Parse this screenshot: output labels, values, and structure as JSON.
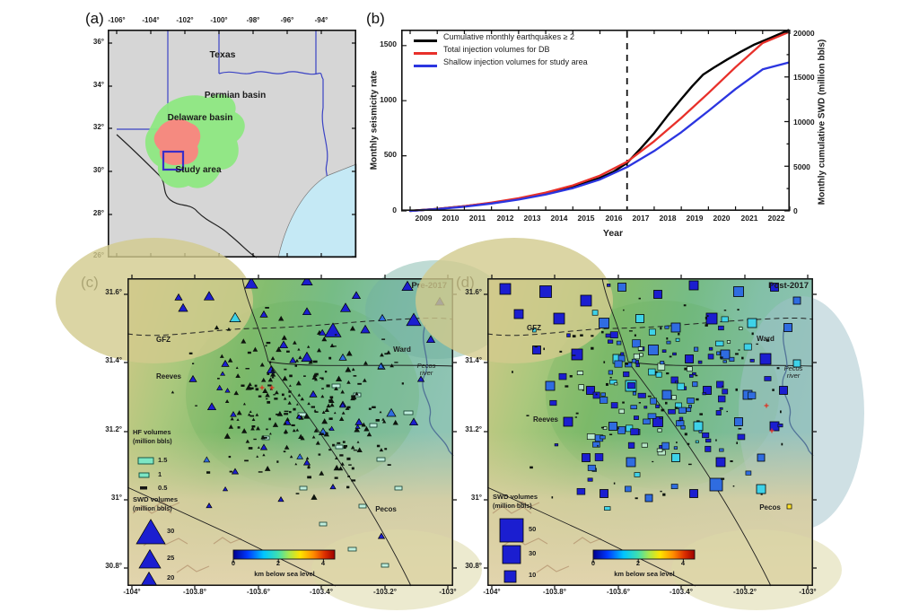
{
  "panels": {
    "a_label": "(a)",
    "b_label": "(b)",
    "c_label": "(c)",
    "d_label": "(d)"
  },
  "panel_a": {
    "x_ticks": [
      "-106°",
      "-104°",
      "-102°",
      "-100°",
      "-98°",
      "-96°",
      "-94°"
    ],
    "y_ticks": [
      "36°",
      "34°",
      "32°",
      "30°",
      "28°",
      "26°"
    ],
    "map_labels": {
      "state": "Texas",
      "permian": "Permian basin",
      "delaware": "Delaware basin",
      "study_area": "Study area"
    },
    "colors": {
      "land": "#d6d6d6",
      "gulf": "#c5e9f5",
      "state_border": "#3b43c4",
      "country_border": "#222222",
      "permian_fill": "#8ee882",
      "delaware_fill": "#f58a80",
      "study_box": "#3a2ec8"
    }
  },
  "panel_b": {
    "legend": [
      {
        "label": "Cumulative monthly earthquakes ≥ 2",
        "color": "#000000"
      },
      {
        "label": "Total injection volumes for DB",
        "color": "#e8302a"
      },
      {
        "label": "Shallow injection volumes for study area",
        "color": "#2b35e0"
      }
    ],
    "y_left_title": "Monthly seismicity rate",
    "y_left_ticks": [
      "0",
      "500",
      "1000",
      "1500"
    ],
    "y_right_title": "Monthly cumulative SWD (million bbls)",
    "y_right_ticks": [
      "0",
      "5000",
      "10000",
      "15000",
      "20000"
    ],
    "x_title": "Year",
    "x_ticks": [
      "2009",
      "2010",
      "2011",
      "2012",
      "2013",
      "2014",
      "2015",
      "2016",
      "2017",
      "2018",
      "2019",
      "2020",
      "2021",
      "2022"
    ],
    "chart_data": {
      "type": "line",
      "x_range": [
        2009,
        2023
      ],
      "y_left_range": [
        0,
        1645
      ],
      "y_right_range": [
        0,
        20300
      ],
      "dashed_vline_x": 2017,
      "series": [
        {
          "name": "Cumulative monthly earthquakes ≥ 2",
          "axis": "left",
          "color": "#000000",
          "points": [
            [
              2009,
              0
            ],
            [
              2010,
              18
            ],
            [
              2011,
              42
            ],
            [
              2012,
              72
            ],
            [
              2013,
              108
            ],
            [
              2014,
              152
            ],
            [
              2015,
              215
            ],
            [
              2016,
              300
            ],
            [
              2016.5,
              355
            ],
            [
              2017,
              435
            ],
            [
              2017.5,
              565
            ],
            [
              2018,
              705
            ],
            [
              2018.5,
              865
            ],
            [
              2019,
              1015
            ],
            [
              2019.4,
              1130
            ],
            [
              2019.8,
              1235
            ],
            [
              2020.2,
              1300
            ],
            [
              2020.7,
              1375
            ],
            [
              2021.2,
              1445
            ],
            [
              2021.7,
              1510
            ],
            [
              2022.2,
              1560
            ],
            [
              2022.95,
              1640
            ]
          ]
        },
        {
          "name": "Total injection volumes for DB",
          "axis": "right",
          "color": "#e8302a",
          "points": [
            [
              2009,
              0
            ],
            [
              2010,
              220
            ],
            [
              2011,
              520
            ],
            [
              2012,
              920
            ],
            [
              2013,
              1420
            ],
            [
              2014,
              2050
            ],
            [
              2015,
              2850
            ],
            [
              2016,
              3950
            ],
            [
              2017,
              5500
            ],
            [
              2018,
              7800
            ],
            [
              2019,
              10400
            ],
            [
              2020,
              13200
            ],
            [
              2021,
              16100
            ],
            [
              2022,
              18800
            ],
            [
              2022.95,
              20000
            ]
          ]
        },
        {
          "name": "Shallow injection volumes for study area",
          "axis": "right",
          "color": "#2b35e0",
          "points": [
            [
              2009,
              0
            ],
            [
              2010,
              200
            ],
            [
              2011,
              460
            ],
            [
              2012,
              820
            ],
            [
              2013,
              1270
            ],
            [
              2014,
              1830
            ],
            [
              2015,
              2540
            ],
            [
              2016,
              3520
            ],
            [
              2017,
              4900
            ],
            [
              2018,
              6700
            ],
            [
              2019,
              8800
            ],
            [
              2020,
              11200
            ],
            [
              2021,
              13650
            ],
            [
              2022,
              15850
            ],
            [
              2022.95,
              16600
            ]
          ]
        }
      ]
    }
  },
  "panel_c": {
    "title": "Pre-2017",
    "x_ticks": [
      "-104°",
      "-103.8°",
      "-103.6°",
      "-103.4°",
      "-103.2°",
      "-103°"
    ],
    "y_ticks": [
      "31.6°",
      "31.4°",
      "31.2°",
      "31°",
      "30.8°"
    ],
    "map_labels": {
      "gfz": "GFZ",
      "reeves": "Reeves",
      "ward": "Ward",
      "pecos_river": "Pecos river",
      "pecos": "Pecos"
    },
    "hf_legend": {
      "title": "HF volumes",
      "unit": "(million bbls)",
      "items": [
        "1.5",
        "1",
        "0.5"
      ]
    },
    "swd_legend": {
      "title": "SWD volumes",
      "unit": "(million bbls)",
      "items": [
        "30",
        "25",
        "20"
      ]
    },
    "colorbar": {
      "ticks": [
        "0",
        "2",
        "4"
      ],
      "label": "km below sea level"
    },
    "markers": {
      "palette": [
        "#1b1ed0",
        "#2f6ce0",
        "#3ed2e8"
      ],
      "triangles": [
        [
          138,
          7,
          14,
          0
        ],
        [
          200,
          4,
          12,
          0
        ],
        [
          91,
          21,
          11,
          0
        ],
        [
          312,
          10,
          12,
          0
        ],
        [
          348,
          27,
          10,
          0
        ],
        [
          62,
          34,
          10,
          0
        ],
        [
          120,
          45,
          12,
          2
        ],
        [
          152,
          41,
          8,
          0
        ],
        [
          200,
          38,
          9,
          0
        ],
        [
          243,
          34,
          11,
          0
        ],
        [
          319,
          48,
          16,
          0
        ],
        [
          338,
          69,
          9,
          0
        ],
        [
          265,
          58,
          10,
          0
        ],
        [
          229,
          60,
          18,
          0
        ],
        [
          174,
          75,
          9,
          0
        ],
        [
          200,
          89,
          12,
          0
        ],
        [
          160,
          103,
          9,
          0
        ],
        [
          109,
          96,
          8,
          0
        ],
        [
          73,
          113,
          8,
          0
        ],
        [
          240,
          89,
          8,
          1
        ],
        [
          283,
          99,
          8,
          1
        ],
        [
          327,
          113,
          7,
          0
        ],
        [
          207,
          130,
          8,
          0
        ],
        [
          240,
          141,
          7,
          0
        ],
        [
          94,
          144,
          9,
          0
        ],
        [
          178,
          161,
          8,
          0
        ],
        [
          218,
          172,
          9,
          1
        ],
        [
          258,
          161,
          8,
          0
        ],
        [
          294,
          151,
          10,
          1
        ],
        [
          319,
          161,
          9,
          0
        ],
        [
          152,
          189,
          7,
          0
        ],
        [
          200,
          206,
          7,
          0
        ],
        [
          120,
          216,
          7,
          0
        ],
        [
          229,
          233,
          6,
          0
        ],
        [
          171,
          247,
          6,
          0
        ],
        [
          91,
          254,
          6,
          0
        ],
        [
          283,
          288,
          7,
          0
        ],
        [
          57,
          22,
          8,
          0
        ],
        [
          255,
          20,
          9,
          0
        ],
        [
          284,
          45,
          8,
          1
        ]
      ],
      "teal_rects": [
        [
          228,
          118,
          9,
          4
        ],
        [
          252,
          128,
          8,
          4
        ],
        [
          190,
          150,
          9,
          4
        ],
        [
          270,
          162,
          8,
          4
        ],
        [
          308,
          148,
          10,
          4
        ],
        [
          150,
          176,
          8,
          4
        ],
        [
          232,
          186,
          8,
          4
        ],
        [
          278,
          200,
          9,
          4
        ],
        [
          298,
          232,
          8,
          4
        ],
        [
          192,
          232,
          8,
          4
        ],
        [
          258,
          252,
          8,
          4
        ],
        [
          214,
          272,
          8,
          4
        ],
        [
          246,
          300,
          9,
          4
        ],
        [
          283,
          318,
          8,
          4
        ]
      ],
      "scatter": {
        "seed": 7,
        "count": 240,
        "blue_count": 14
      }
    }
  },
  "panel_d": {
    "title": "Post-2017",
    "x_ticks": [
      "-104°",
      "-103.8°",
      "-103.6°",
      "-103.4°",
      "-103.2°",
      "-103°"
    ],
    "y_ticks": [
      "31.6°",
      "31.4°",
      "31.2°",
      "31°",
      "30.8°"
    ],
    "map_labels": {
      "gfz": "GFZ",
      "reeves": "Reeves",
      "ward": "Ward",
      "pecos_river": "Pecos river",
      "pecos": "Pecos"
    },
    "swd_legend": {
      "title": "SWD volumes",
      "unit": "(million bbls)",
      "items": [
        "50",
        "30",
        "10"
      ]
    },
    "colorbar": {
      "ticks": [
        "0",
        "2",
        "4"
      ],
      "label": "km below sea level"
    },
    "markers": {
      "palette": [
        "#1b1ed0",
        "#2f6ce0",
        "#3ed2e8"
      ],
      "squares": [
        [
          20,
          12,
          12,
          0
        ],
        [
          65,
          15,
          13,
          0
        ],
        [
          110,
          25,
          12,
          0
        ],
        [
          150,
          10,
          9,
          1
        ],
        [
          190,
          18,
          9,
          0
        ],
        [
          230,
          8,
          10,
          0
        ],
        [
          280,
          15,
          11,
          1
        ],
        [
          320,
          10,
          9,
          0
        ],
        [
          345,
          25,
          8,
          1
        ],
        [
          35,
          40,
          10,
          0
        ],
        [
          80,
          45,
          12,
          0
        ],
        [
          130,
          50,
          11,
          1
        ],
        [
          170,
          45,
          9,
          2
        ],
        [
          210,
          55,
          10,
          1
        ],
        [
          250,
          45,
          12,
          0
        ],
        [
          295,
          50,
          10,
          2
        ],
        [
          335,
          55,
          9,
          1
        ],
        [
          55,
          80,
          9,
          0
        ],
        [
          100,
          85,
          12,
          0
        ],
        [
          145,
          90,
          10,
          2
        ],
        [
          185,
          80,
          11,
          1
        ],
        [
          225,
          90,
          9,
          0
        ],
        [
          265,
          85,
          10,
          1
        ],
        [
          310,
          90,
          12,
          0
        ],
        [
          345,
          95,
          8,
          2
        ],
        [
          70,
          120,
          10,
          1
        ],
        [
          115,
          125,
          9,
          0
        ],
        [
          160,
          120,
          12,
          2
        ],
        [
          200,
          130,
          10,
          1
        ],
        [
          245,
          125,
          9,
          0
        ],
        [
          290,
          130,
          10,
          1
        ],
        [
          330,
          125,
          9,
          0
        ],
        [
          90,
          160,
          10,
          0
        ],
        [
          140,
          165,
          9,
          1
        ],
        [
          190,
          160,
          11,
          0
        ],
        [
          235,
          165,
          10,
          2
        ],
        [
          280,
          160,
          9,
          1
        ],
        [
          320,
          165,
          10,
          0
        ],
        [
          110,
          200,
          9,
          0
        ],
        [
          160,
          205,
          10,
          1
        ],
        [
          210,
          200,
          9,
          2
        ],
        [
          260,
          205,
          10,
          0
        ],
        [
          305,
          200,
          8,
          1
        ],
        [
          130,
          240,
          9,
          0
        ],
        [
          180,
          245,
          8,
          1
        ],
        [
          230,
          240,
          9,
          0
        ],
        [
          255,
          230,
          14,
          1
        ],
        [
          305,
          235,
          10,
          2
        ]
      ],
      "yellow_square": [
        334,
        252,
        5
      ],
      "yellow": "#ffe32a",
      "scatter": {
        "seed": 13,
        "square_count": 130,
        "dot_count": 85
      }
    }
  }
}
